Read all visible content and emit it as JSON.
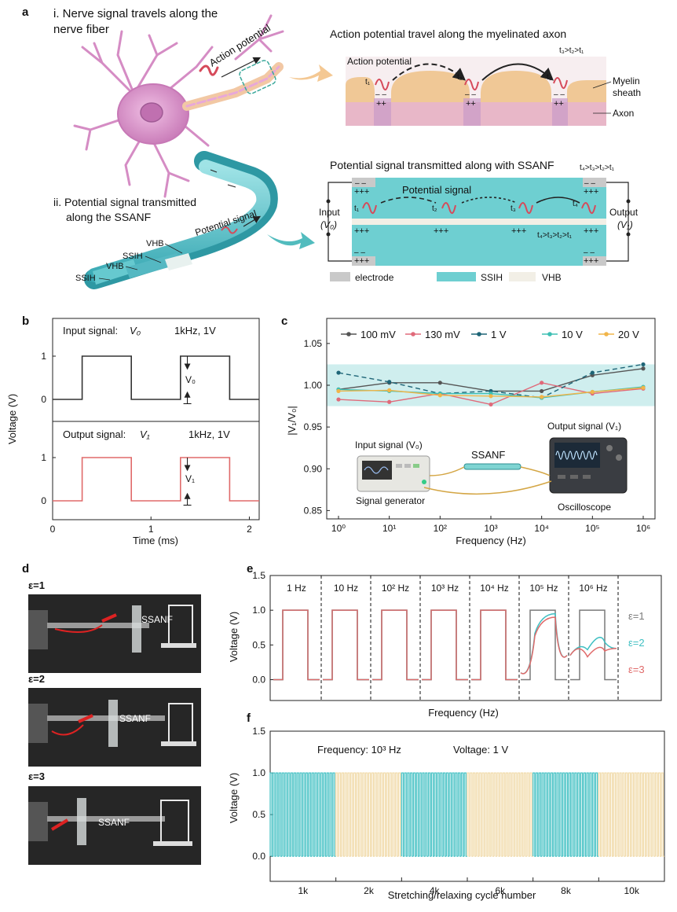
{
  "panel_labels": {
    "a": "a",
    "b": "b",
    "c": "c",
    "d": "d",
    "e": "e",
    "f": "f"
  },
  "panel_a": {
    "nerve_title_line1": "i. Nerve signal travels along the",
    "nerve_title_line2": "nerve fiber",
    "action_potential_arrow": "Action potential",
    "axon_title": "Action potential travel along the myelinated axon",
    "axon_time_order": "t₃>t₂>t₁",
    "axon_action_potential": "Action potential",
    "t1": "t₁",
    "t2": "t₂",
    "t3": "t₃",
    "t4": "t₄",
    "myelin_line1": "Myelin",
    "myelin_line2": "sheath",
    "axon_label": "Axon",
    "plus_two": "++",
    "plus_three": "+++",
    "minus_two": "– –",
    "ssanf_title_line1": "ii. Potential signal transmitted",
    "ssanf_title_line2": "along the SSANF",
    "potential_signal_arrow": "Potential  signal",
    "layer_vhb": "VHB",
    "layer_ssih": "SSIH",
    "ssanf_circuit_title": "Potential signal transmitted along with SSANF",
    "circuit_time_order": "t₄>t₃>t₂>t₁",
    "circuit_potential_signal": "Potential signal",
    "input_label": "Input",
    "input_symbol": "(V₀)",
    "output_label": "Output",
    "output_symbol": "(V₁)",
    "legend_electrode": "electrode",
    "legend_ssih": "SSIH",
    "legend_vhb": "VHB",
    "colors": {
      "teal": "#6ecfd1",
      "myelin": "#f1c89a",
      "axon": "#e9b9c9",
      "neuron": "#d98cc6"
    }
  },
  "panel_b": {
    "input_title": "Input signal:",
    "input_symbol": "V₀",
    "input_condition": "1kHz, 1V",
    "input_amp_label": "V₀",
    "output_title": "Output  signal:",
    "output_symbol": "V₁",
    "output_condition": "1kHz, 1V",
    "output_amp_label": "V₁",
    "ylabel": "Voltage (V)",
    "xlabel": "Time (ms)",
    "xticks": [
      "0",
      "1",
      "2"
    ],
    "yticks": [
      "0",
      "1"
    ]
  },
  "panel_c": {
    "ylabel": "|V₁/V₀|",
    "xlabel": "Frequency (Hz)",
    "yticks": [
      "0.85",
      "0.90",
      "0.95",
      "1.00",
      "1.05"
    ],
    "xticks": [
      "10⁰",
      "10¹",
      "10²",
      "10³",
      "10⁴",
      "10⁵",
      "10⁶"
    ],
    "input_signal_label": "Input signal (V₀)",
    "output_signal_label": "Output signal (V₁)",
    "ssanf_label": "SSANF",
    "generator_label": "Signal generator",
    "oscilloscope_label": "Oscilloscope"
  },
  "panel_d": {
    "captions": [
      "ε=1",
      "ε=2",
      "ε=3"
    ],
    "ssanf_label": "SSANF"
  },
  "panel_e": {
    "ylabel": "Voltage (V)",
    "xlabel": "Frequency (Hz)",
    "segment_labels": [
      "1 Hz",
      "10 Hz",
      "10² Hz",
      "10³ Hz",
      "10⁴ Hz",
      "10⁵ Hz",
      "10⁶ Hz"
    ],
    "yticks": [
      "0.0",
      "0.5",
      "1.0",
      "1.5"
    ],
    "legend": [
      "ε=1",
      "ε=2",
      "ε=3"
    ]
  },
  "panel_f": {
    "ylabel": "Voltage (V)",
    "xlabel": "Stretching/relaxing cycle number",
    "frequency_note": "Frequency: 10³ Hz",
    "voltage_note": "Voltage:  1 V",
    "xticks": [
      "1k",
      "2k",
      "4k",
      "6k",
      "8k",
      "10k"
    ],
    "yticks": [
      "0.0",
      "0.5",
      "1.0",
      "1.5"
    ]
  },
  "chart_data": [
    {
      "id": "b-input",
      "type": "line",
      "title": "Input signal: V₀ (1kHz, 1V)",
      "xlabel": "Time (ms)",
      "ylabel": "Voltage (V)",
      "xlim": [
        0,
        2.1
      ],
      "ylim": [
        -0.2,
        1.4
      ],
      "x": [
        0,
        0.3,
        0.3,
        0.8,
        0.8,
        1.3,
        1.3,
        1.8,
        1.8,
        2.1
      ],
      "y": [
        0,
        0,
        1,
        1,
        0,
        0,
        1,
        1,
        0,
        0
      ],
      "color": "#333333"
    },
    {
      "id": "b-output",
      "type": "line",
      "title": "Output signal: V₁ (1kHz, 1V)",
      "xlabel": "Time (ms)",
      "ylabel": "Voltage (V)",
      "xlim": [
        0,
        2.1
      ],
      "ylim": [
        -0.2,
        1.4
      ],
      "x": [
        0,
        0.3,
        0.3,
        0.8,
        0.8,
        1.3,
        1.3,
        1.8,
        1.8,
        2.1
      ],
      "y": [
        0,
        0,
        1,
        1,
        0,
        0,
        1,
        1,
        0,
        0
      ],
      "color": "#e06a6a"
    },
    {
      "id": "c",
      "type": "line",
      "xlabel": "Frequency (Hz)",
      "ylabel": "|V₁/V₀|",
      "xscale": "log",
      "xlim": [
        1,
        1000000
      ],
      "ylim": [
        0.84,
        1.08
      ],
      "band": [
        0.975,
        1.025
      ],
      "x": [
        1,
        10,
        100,
        1000,
        10000,
        100000,
        1000000
      ],
      "series": [
        {
          "name": "100 mV",
          "color": "#555555",
          "values": [
            0.995,
            1.003,
            1.003,
            0.993,
            0.993,
            1.012,
            1.02
          ]
        },
        {
          "name": "130 mV",
          "color": "#e06a7a",
          "values": [
            0.983,
            0.98,
            0.99,
            0.977,
            1.003,
            0.99,
            0.996
          ]
        },
        {
          "name": "1 V",
          "color": "#1e6577",
          "dashed": true,
          "values": [
            1.015,
            1.004,
            0.99,
            0.993,
            0.985,
            1.015,
            1.025
          ]
        },
        {
          "name": "10 V",
          "color": "#3ebfb4",
          "values": [
            0.995,
            0.993,
            0.99,
            0.99,
            0.985,
            0.992,
            0.998
          ]
        },
        {
          "name": "20 V",
          "color": "#f1b54a",
          "values": [
            0.993,
            0.994,
            0.988,
            0.987,
            0.986,
            0.992,
            0.997
          ]
        }
      ]
    },
    {
      "id": "e",
      "type": "line",
      "xlabel": "Frequency (Hz)",
      "ylabel": "Voltage (V)",
      "ylim": [
        -0.3,
        1.5
      ],
      "categories": [
        "1 Hz",
        "10 Hz",
        "10² Hz",
        "10³ Hz",
        "10⁴ Hz",
        "10⁵ Hz",
        "10⁶ Hz"
      ],
      "series": [
        {
          "name": "ε=1",
          "color": "#7a7a7a",
          "amplitude": [
            1.0,
            1.0,
            1.0,
            1.0,
            1.0,
            1.0,
            1.0
          ]
        },
        {
          "name": "ε=2",
          "color": "#3ebfc2",
          "amplitude": [
            1.0,
            1.0,
            1.0,
            1.0,
            1.0,
            0.95,
            0.72
          ]
        },
        {
          "name": "ε=3",
          "color": "#e06a6a",
          "amplitude": [
            1.0,
            1.0,
            1.0,
            1.0,
            1.0,
            0.9,
            0.55
          ]
        }
      ]
    },
    {
      "id": "f",
      "type": "line",
      "xlabel": "Stretching/relaxing cycle number",
      "ylabel": "Voltage (V)",
      "ylim": [
        -0.3,
        1.5
      ],
      "frequency_hz": 1000,
      "voltage_v": 1,
      "categories": [
        "1k",
        "2k",
        "4k",
        "6k",
        "8k",
        "10k"
      ],
      "segment_colors": [
        "#3ebfc2",
        "#f0d9a6",
        "#3ebfc2",
        "#f0d9a6",
        "#3ebfc2",
        "#f0d9a6"
      ],
      "high": 1.0,
      "low": 0.0
    }
  ]
}
